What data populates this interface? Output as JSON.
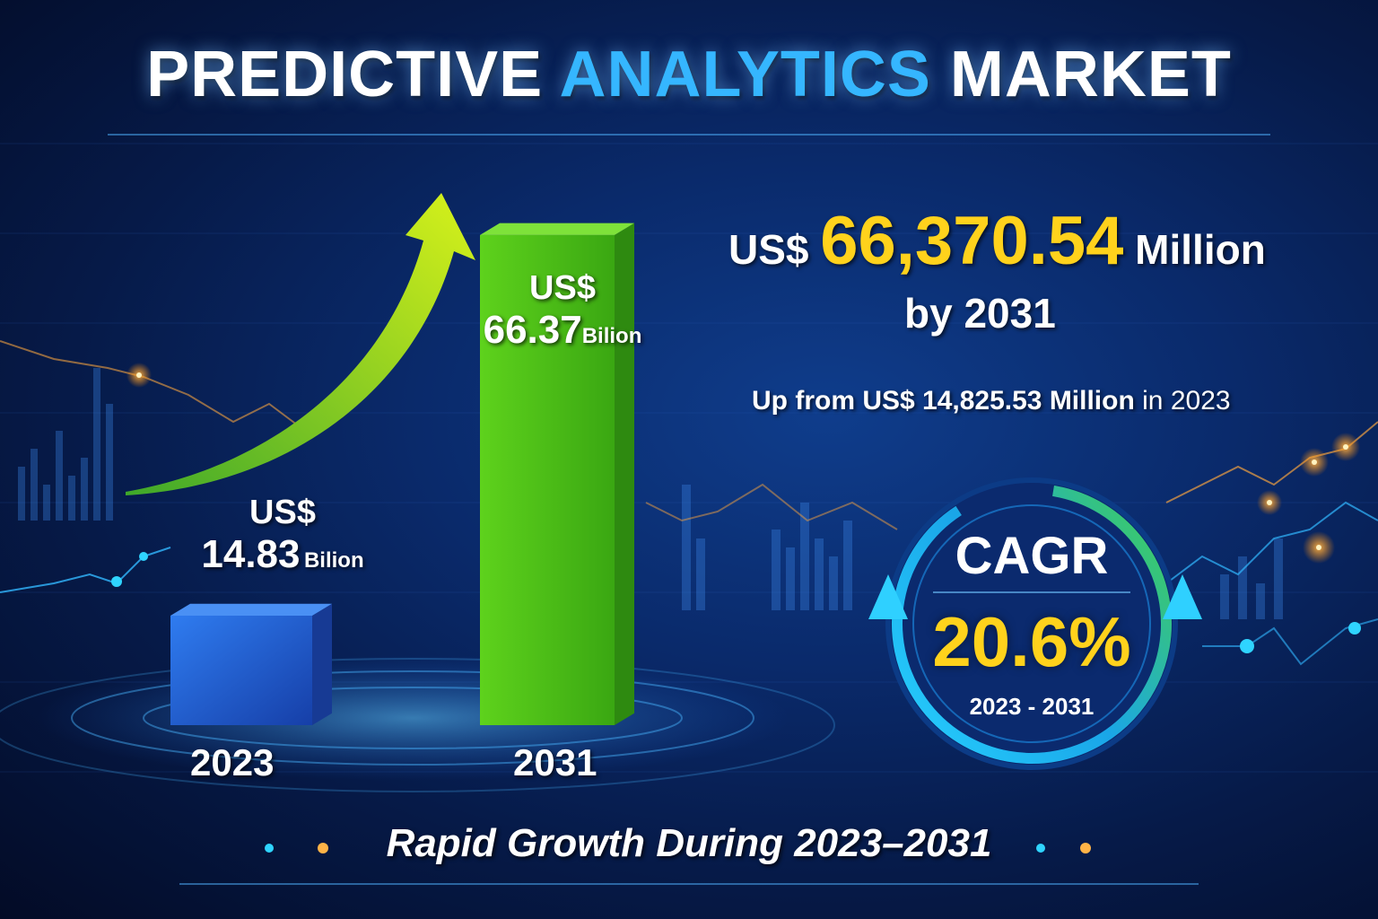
{
  "title": {
    "part1": "PREDICTIVE",
    "part2": "ANALYTICS",
    "part3": "MARKET"
  },
  "headline": {
    "currency": "US$",
    "value": "66,370.54",
    "unit": "Million",
    "by": "by 2031"
  },
  "subline": {
    "text": "Up from US$ 14,825.53 Million",
    "year": "in 2023"
  },
  "cagr": {
    "label": "CAGR",
    "value": "20.6%",
    "period": "2023 - 2031"
  },
  "footer": "Rapid Growth During 2023–2031",
  "colors": {
    "accent_blue": "#35b6ff",
    "accent_yellow": "#ffd21c",
    "bar_2023": "#1f63d8",
    "bar_2031": "#5fcf1a"
  },
  "chart_data": {
    "type": "bar",
    "categories": [
      "2023",
      "2031"
    ],
    "values": [
      14.83,
      66.37
    ],
    "value_labels": [
      {
        "currency": "US$",
        "number": "14.83",
        "unit": "Bilion"
      },
      {
        "currency": "US$",
        "number": "66.37",
        "unit": "Bilion"
      }
    ],
    "title": "",
    "xlabel": "",
    "ylabel": "",
    "ylim": [
      0,
      70
    ],
    "grid": false,
    "legend": "none"
  }
}
